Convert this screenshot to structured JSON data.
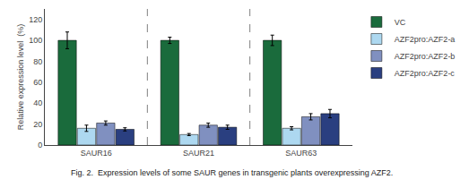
{
  "chart_data": {
    "type": "bar",
    "categories": [
      "SAUR16",
      "SAUR21",
      "SAUR63"
    ],
    "series": [
      {
        "name": "VC",
        "color": "#1a6b3c",
        "values": [
          100,
          100,
          100
        ],
        "errors": [
          8,
          3,
          5
        ]
      },
      {
        "name": "AZF2pro:AZF2-a",
        "color": "#add8f0",
        "values": [
          16,
          10,
          16
        ],
        "errors": [
          3,
          1,
          1.5
        ]
      },
      {
        "name": "AZF2pro:AZF2-b",
        "color": "#8090c0",
        "values": [
          21,
          19,
          27
        ],
        "errors": [
          2,
          2,
          3
        ]
      },
      {
        "name": "AZF2pro:AZF2-c",
        "color": "#2a3f80",
        "values": [
          15,
          17,
          30
        ],
        "errors": [
          1.5,
          2,
          4
        ]
      }
    ],
    "ylabel": "Relative expression level  (%)",
    "ylim": [
      0,
      130
    ],
    "yticks": [
      0,
      20,
      40,
      60,
      80,
      100,
      120
    ],
    "grid": false,
    "legend": "right",
    "annotations": [
      "Fig. 2.  Expression levels of some SAUR genes in transgenic plants overexpressing AZF2."
    ]
  }
}
